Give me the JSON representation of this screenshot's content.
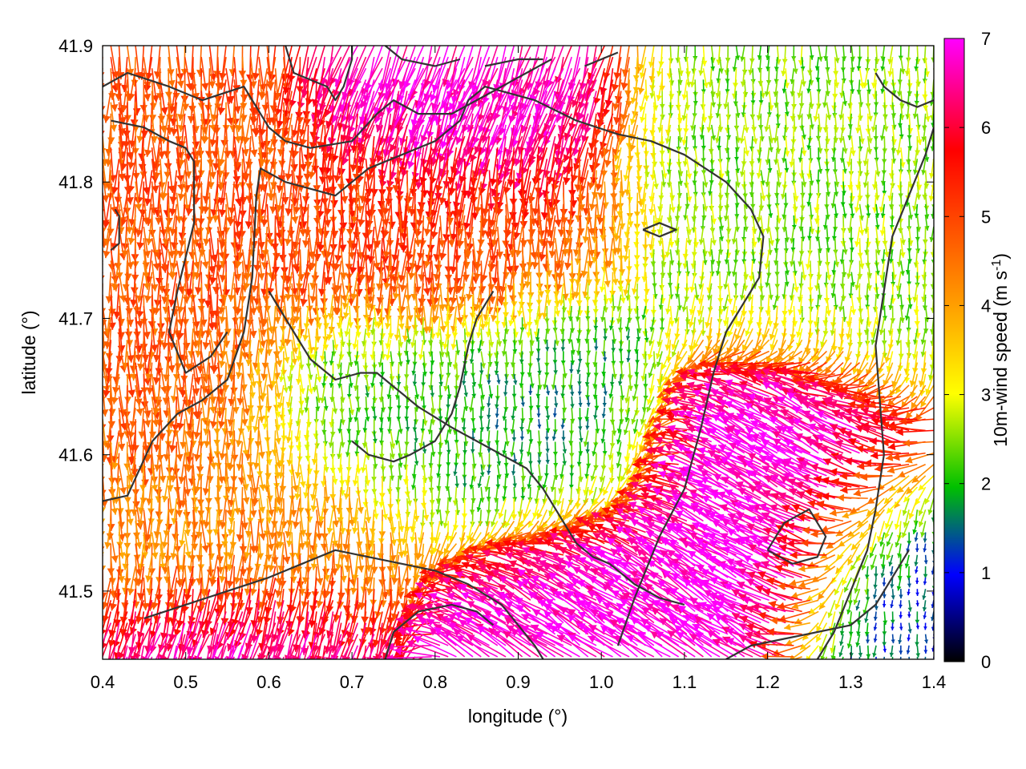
{
  "chart_data": {
    "type": "vector-field",
    "xlabel": "longitude (°)",
    "ylabel": "latitude (°)",
    "xlim": [
      0.4,
      1.4
    ],
    "ylim": [
      41.45,
      41.9
    ],
    "x_ticks": [
      "0.4",
      "0.5",
      "0.6",
      "0.7",
      "0.8",
      "0.9",
      "1.0",
      "1.1",
      "1.2",
      "1.3",
      "1.4"
    ],
    "y_ticks": [
      "41.5",
      "41.6",
      "41.7",
      "41.8",
      "41.9"
    ],
    "grid": false,
    "colorbar": {
      "label": "10m-wind speed (m s⁻¹)",
      "label_main": "10m-wind speed (m s",
      "label_sup": "-1",
      "label_end": ")",
      "range": [
        0,
        7
      ],
      "ticks": [
        "0",
        "1",
        "2",
        "3",
        "4",
        "5",
        "6",
        "7"
      ],
      "palette": [
        "#000000",
        "#0000ff",
        "#00c000",
        "#ffff00",
        "#ffa000",
        "#ff0000",
        "#ff00ff"
      ],
      "placement": "right"
    },
    "series": [
      {
        "type": "vector-field",
        "units": "m s-1",
        "regions": [
          {
            "lon": [
              0.4,
              0.6
            ],
            "lat": [
              41.6,
              41.85
            ],
            "speed": 4.8,
            "direction_deg": 270
          },
          {
            "lon": [
              0.6,
              0.95
            ],
            "lat": [
              41.72,
              41.82
            ],
            "speed": 5.0,
            "direction_deg": 268
          },
          {
            "lon": [
              0.62,
              0.85
            ],
            "lat": [
              41.6,
              41.7
            ],
            "speed": 2.2,
            "direction_deg": 270
          },
          {
            "lon": [
              0.85,
              1.05
            ],
            "lat": [
              41.55,
              41.7
            ],
            "speed": 1.8,
            "direction_deg": 270
          },
          {
            "lon": [
              0.75,
              0.95
            ],
            "lat": [
              41.83,
              41.9
            ],
            "speed": 6.8,
            "direction_deg": 250
          },
          {
            "lon": [
              1.1,
              1.3
            ],
            "lat": [
              41.5,
              41.65
            ],
            "speed": 7.0,
            "direction_deg": 150
          },
          {
            "lon": [
              0.9,
              1.1
            ],
            "lat": [
              41.45,
              41.55
            ],
            "speed": 7.0,
            "direction_deg": 145
          },
          {
            "lon": [
              0.45,
              0.65
            ],
            "lat": [
              41.45,
              41.5
            ],
            "speed": 6.8,
            "direction_deg": 250
          },
          {
            "lon": [
              1.1,
              1.4
            ],
            "lat": [
              41.7,
              41.9
            ],
            "speed": 2.5,
            "direction_deg": 270
          },
          {
            "lon": [
              0.4,
              0.7
            ],
            "lat": [
              41.5,
              41.6
            ],
            "speed": 4.2,
            "direction_deg": 270
          },
          {
            "lon": [
              1.3,
              1.4
            ],
            "lat": [
              41.45,
              41.55
            ],
            "speed": 1.2,
            "direction_deg": 270
          }
        ]
      }
    ],
    "contours": [
      [
        [
          0.4,
          41.566
        ],
        [
          0.43,
          41.57
        ],
        [
          0.46,
          41.61
        ],
        [
          0.49,
          41.63
        ],
        [
          0.52,
          41.64
        ],
        [
          0.55,
          41.655
        ],
        [
          0.57,
          41.69
        ],
        [
          0.58,
          41.73
        ],
        [
          0.585,
          41.79
        ],
        [
          0.59,
          41.81
        ],
        [
          0.62,
          41.8
        ],
        [
          0.65,
          41.795
        ],
        [
          0.68,
          41.79
        ],
        [
          0.72,
          41.81
        ],
        [
          0.76,
          41.82
        ],
        [
          0.8,
          41.83
        ],
        [
          0.83,
          41.845
        ],
        [
          0.84,
          41.86
        ],
        [
          0.86,
          41.87
        ],
        [
          0.92,
          41.86
        ],
        [
          0.97,
          41.845
        ],
        [
          1.02,
          41.835
        ],
        [
          1.06,
          41.83
        ],
        [
          1.1,
          41.82
        ],
        [
          1.15,
          41.8
        ],
        [
          1.18,
          41.78
        ],
        [
          1.195,
          41.76
        ],
        [
          1.19,
          41.73
        ],
        [
          1.17,
          41.71
        ],
        [
          1.15,
          41.69
        ],
        [
          1.135,
          41.66
        ],
        [
          1.12,
          41.62
        ],
        [
          1.1,
          41.575
        ],
        [
          1.07,
          41.54
        ],
        [
          1.04,
          41.495
        ],
        [
          1.02,
          41.46
        ]
      ],
      [
        [
          0.41,
          41.845
        ],
        [
          0.45,
          41.84
        ],
        [
          0.48,
          41.83
        ],
        [
          0.5,
          41.825
        ],
        [
          0.51,
          41.815
        ],
        [
          0.51,
          41.77
        ],
        [
          0.49,
          41.72
        ],
        [
          0.48,
          41.69
        ],
        [
          0.5,
          41.66
        ],
        [
          0.53,
          41.672
        ],
        [
          0.55,
          41.69
        ]
      ],
      [
        [
          0.415,
          41.78
        ],
        [
          0.42,
          41.775
        ],
        [
          0.42,
          41.755
        ],
        [
          0.41,
          41.75
        ]
      ],
      [
        [
          0.4,
          41.87
        ],
        [
          0.43,
          41.88
        ],
        [
          0.48,
          41.87
        ],
        [
          0.52,
          41.86
        ],
        [
          0.57,
          41.87
        ],
        [
          0.6,
          41.84
        ],
        [
          0.62,
          41.83
        ],
        [
          0.65,
          41.825
        ],
        [
          0.7,
          41.83
        ],
        [
          0.73,
          41.85
        ],
        [
          0.75,
          41.86
        ],
        [
          0.78,
          41.85
        ],
        [
          0.82,
          41.85
        ],
        [
          0.85,
          41.86
        ],
        [
          0.88,
          41.87
        ],
        [
          0.91,
          41.88
        ],
        [
          0.94,
          41.89
        ]
      ],
      [
        [
          0.62,
          41.9
        ],
        [
          0.63,
          41.88
        ],
        [
          0.65,
          41.875
        ],
        [
          0.67,
          41.87
        ],
        [
          0.68,
          41.86
        ],
        [
          0.69,
          41.87
        ],
        [
          0.7,
          41.89
        ],
        [
          0.7,
          41.9
        ]
      ],
      [
        [
          0.74,
          41.9
        ],
        [
          0.76,
          41.89
        ],
        [
          0.8,
          41.885
        ],
        [
          0.83,
          41.89
        ]
      ],
      [
        [
          0.86,
          41.885
        ],
        [
          0.9,
          41.89
        ],
        [
          0.93,
          41.89
        ]
      ],
      [
        [
          0.98,
          41.885
        ],
        [
          1.0,
          41.89
        ],
        [
          1.02,
          41.895
        ]
      ],
      [
        [
          0.6,
          41.72
        ],
        [
          0.63,
          41.69
        ],
        [
          0.65,
          41.67
        ],
        [
          0.68,
          41.655
        ],
        [
          0.71,
          41.66
        ],
        [
          0.73,
          41.66
        ],
        [
          0.75,
          41.65
        ],
        [
          0.78,
          41.635
        ],
        [
          0.82,
          41.62
        ],
        [
          0.85,
          41.61
        ],
        [
          0.88,
          41.6
        ],
        [
          0.91,
          41.59
        ],
        [
          0.93,
          41.575
        ],
        [
          0.95,
          41.555
        ],
        [
          0.97,
          41.535
        ],
        [
          0.99,
          41.525
        ],
        [
          1.01,
          41.52
        ],
        [
          1.04,
          41.505
        ],
        [
          1.07,
          41.495
        ],
        [
          1.1,
          41.49
        ]
      ],
      [
        [
          0.7,
          41.61
        ],
        [
          0.72,
          41.6
        ],
        [
          0.75,
          41.595
        ],
        [
          0.77,
          41.6
        ],
        [
          0.8,
          41.61
        ],
        [
          0.82,
          41.63
        ],
        [
          0.83,
          41.65
        ],
        [
          0.84,
          41.68
        ],
        [
          0.85,
          41.7
        ],
        [
          0.87,
          41.72
        ]
      ],
      [
        [
          0.45,
          41.48
        ],
        [
          0.5,
          41.49
        ],
        [
          0.55,
          41.5
        ],
        [
          0.6,
          41.51
        ],
        [
          0.64,
          41.52
        ],
        [
          0.68,
          41.53
        ],
        [
          0.72,
          41.525
        ],
        [
          0.76,
          41.52
        ],
        [
          0.8,
          41.515
        ],
        [
          0.84,
          41.505
        ],
        [
          0.88,
          41.49
        ],
        [
          0.9,
          41.475
        ],
        [
          0.92,
          41.46
        ],
        [
          0.93,
          41.45
        ]
      ],
      [
        [
          0.74,
          41.45
        ],
        [
          0.75,
          41.47
        ],
        [
          0.78,
          41.485
        ],
        [
          0.82,
          41.49
        ],
        [
          0.85,
          41.485
        ],
        [
          0.87,
          41.475
        ]
      ],
      [
        [
          1.15,
          41.45
        ],
        [
          1.18,
          41.46
        ],
        [
          1.22,
          41.465
        ],
        [
          1.26,
          41.47
        ],
        [
          1.3,
          41.475
        ],
        [
          1.33,
          41.49
        ],
        [
          1.35,
          41.51
        ],
        [
          1.37,
          41.53
        ]
      ],
      [
        [
          1.2,
          41.53
        ],
        [
          1.23,
          41.52
        ],
        [
          1.26,
          41.525
        ],
        [
          1.27,
          41.54
        ],
        [
          1.25,
          41.56
        ],
        [
          1.22,
          41.55
        ],
        [
          1.2,
          41.53
        ]
      ],
      [
        [
          1.26,
          41.45
        ],
        [
          1.28,
          41.47
        ],
        [
          1.3,
          41.5
        ],
        [
          1.32,
          41.53
        ],
        [
          1.33,
          41.56
        ],
        [
          1.34,
          41.6
        ],
        [
          1.335,
          41.64
        ],
        [
          1.33,
          41.68
        ],
        [
          1.34,
          41.72
        ],
        [
          1.35,
          41.76
        ],
        [
          1.37,
          41.79
        ],
        [
          1.39,
          41.82
        ],
        [
          1.4,
          41.84
        ]
      ],
      [
        [
          1.33,
          41.88
        ],
        [
          1.34,
          41.87
        ],
        [
          1.36,
          41.86
        ],
        [
          1.38,
          41.855
        ],
        [
          1.4,
          41.86
        ]
      ],
      [
        [
          1.05,
          41.765
        ],
        [
          1.07,
          41.77
        ],
        [
          1.09,
          41.765
        ],
        [
          1.07,
          41.76
        ],
        [
          1.05,
          41.765
        ]
      ]
    ]
  }
}
